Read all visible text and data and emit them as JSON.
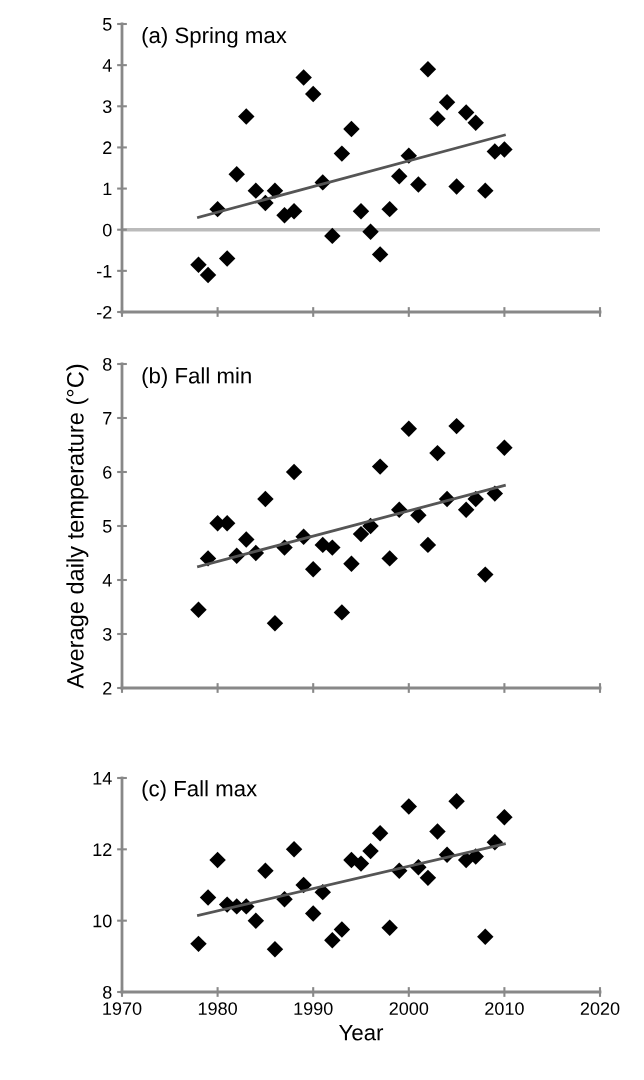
{
  "chart_data": [
    {
      "type": "scatter",
      "title": "(a) Spring max",
      "xlim": [
        1970,
        2020
      ],
      "xticks": [
        1970,
        1980,
        1990,
        2000,
        2010,
        2020
      ],
      "ylim": [
        -2,
        5
      ],
      "yticks": [
        -2,
        -1,
        0,
        1,
        2,
        3,
        4,
        5
      ],
      "tick_labels": "y",
      "ref_lines": [
        {
          "axis": "y",
          "value": 0,
          "color": "#bbbbbb"
        }
      ],
      "series": [
        {
          "color": "#000000",
          "marker": "diamond",
          "x": [
            1978,
            1979,
            1980,
            1981,
            1982,
            1983,
            1984,
            1985,
            1986,
            1987,
            1988,
            1989,
            1990,
            1991,
            1992,
            1993,
            1994,
            1995,
            1996,
            1997,
            1998,
            1999,
            2000,
            2001,
            2002,
            2003,
            2004,
            2005,
            2006,
            2007,
            2008,
            2009,
            2010
          ],
          "values": [
            -0.85,
            -1.1,
            0.5,
            -0.7,
            1.35,
            2.75,
            0.95,
            0.65,
            0.95,
            0.35,
            0.45,
            3.7,
            3.3,
            1.15,
            -0.15,
            1.85,
            2.45,
            0.45,
            -0.05,
            -0.6,
            0.5,
            1.3,
            1.8,
            1.1,
            3.9,
            2.7,
            3.1,
            1.05,
            2.85,
            2.6,
            0.95,
            1.9,
            1.95
          ]
        },
        {
          "type": "line",
          "color": "#555555",
          "marker": "none",
          "line_style": "solid",
          "x": [
            1978,
            2010
          ],
          "values": [
            0.3,
            2.3
          ]
        }
      ]
    },
    {
      "type": "scatter",
      "title": "(b) Fall min",
      "ylabel": "Average daily temperature (°C)",
      "xlim": [
        1970,
        2020
      ],
      "xticks": [
        1970,
        1980,
        1990,
        2000,
        2010,
        2020
      ],
      "ylim": [
        2,
        8
      ],
      "yticks": [
        2,
        3,
        4,
        5,
        6,
        7,
        8
      ],
      "tick_labels": "y",
      "series": [
        {
          "color": "#000000",
          "marker": "diamond",
          "x": [
            1978,
            1979,
            1980,
            1981,
            1982,
            1983,
            1984,
            1985,
            1986,
            1987,
            1988,
            1989,
            1990,
            1991,
            1992,
            1993,
            1994,
            1995,
            1996,
            1997,
            1998,
            1999,
            2000,
            2001,
            2002,
            2003,
            2004,
            2005,
            2006,
            2007,
            2008,
            2009,
            2010
          ],
          "values": [
            3.45,
            4.4,
            5.05,
            5.05,
            4.45,
            4.75,
            4.5,
            5.5,
            3.2,
            4.6,
            6.0,
            4.8,
            4.2,
            4.65,
            4.6,
            3.4,
            4.3,
            4.85,
            5.0,
            6.1,
            4.4,
            5.3,
            6.8,
            5.2,
            4.65,
            6.35,
            5.5,
            6.85,
            5.3,
            5.5,
            4.1,
            5.6,
            6.45
          ]
        },
        {
          "type": "line",
          "color": "#555555",
          "marker": "none",
          "line_style": "solid",
          "x": [
            1978,
            2010
          ],
          "values": [
            4.25,
            5.75
          ]
        }
      ]
    },
    {
      "type": "scatter",
      "title": "(c) Fall max",
      "xlabel": "Year",
      "xlim": [
        1970,
        2020
      ],
      "xticks": [
        1970,
        1980,
        1990,
        2000,
        2010,
        2020
      ],
      "ylim": [
        8,
        14
      ],
      "yticks": [
        8,
        10,
        12,
        14
      ],
      "series": [
        {
          "color": "#000000",
          "marker": "diamond",
          "x": [
            1978,
            1979,
            1980,
            1981,
            1982,
            1983,
            1984,
            1985,
            1986,
            1987,
            1988,
            1989,
            1990,
            1991,
            1992,
            1993,
            1994,
            1995,
            1996,
            1997,
            1998,
            1999,
            2000,
            2001,
            2002,
            2003,
            2004,
            2005,
            2006,
            2007,
            2008,
            2009,
            2010
          ],
          "values": [
            9.35,
            10.65,
            11.7,
            10.45,
            10.4,
            10.4,
            10.0,
            11.4,
            9.2,
            10.6,
            12.0,
            11.0,
            10.2,
            10.8,
            9.45,
            9.75,
            11.7,
            11.6,
            11.95,
            12.45,
            9.8,
            11.4,
            13.2,
            11.5,
            11.2,
            12.5,
            11.85,
            13.35,
            11.7,
            11.8,
            9.55,
            12.2,
            12.9
          ]
        },
        {
          "type": "line",
          "color": "#555555",
          "marker": "none",
          "line_style": "solid",
          "x": [
            1978,
            2010
          ],
          "values": [
            10.15,
            12.15
          ]
        }
      ]
    }
  ]
}
